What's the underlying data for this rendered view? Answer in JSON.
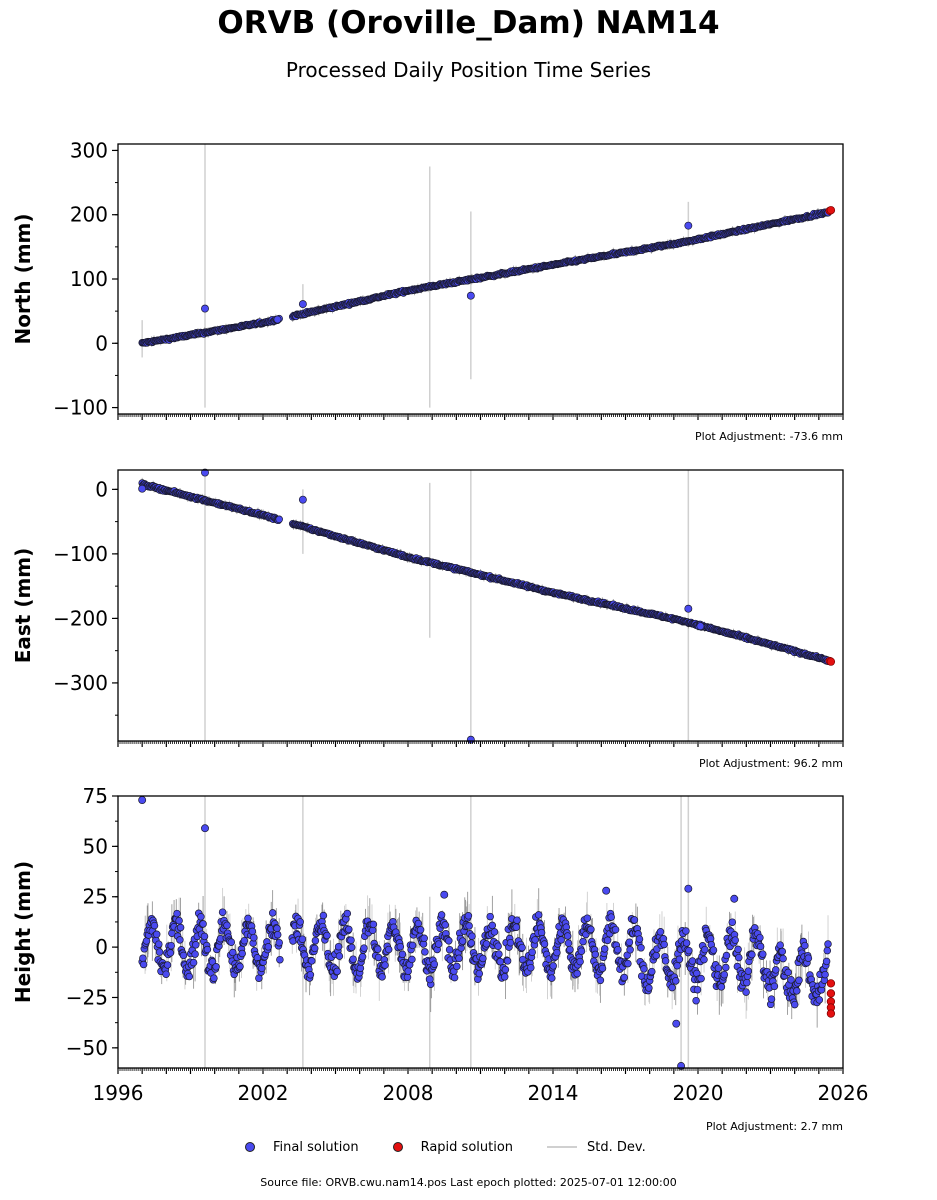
{
  "header": {
    "title": "ORVB (Oroville_Dam) NAM14",
    "subtitle": "Processed Daily Position Time Series"
  },
  "footer": {
    "source": "Source file: ORVB.cwu.nam14.pos  Last epoch plotted: 2025-07-01 12:00:00"
  },
  "legend": {
    "final": "Final solution",
    "rapid": "Rapid solution",
    "stddev": "Std. Dev."
  },
  "colors": {
    "final": "#4a4af0",
    "rapid": "#e31010",
    "stddev": "#d0d0d0",
    "marker_edge": "#1a1a2e"
  },
  "chart_data": [
    {
      "type": "scatter",
      "ylabel": "North (mm)",
      "ylim": [
        -110,
        310
      ],
      "yticks": [
        -100,
        0,
        100,
        200,
        300
      ],
      "xlim": [
        1996,
        2026
      ],
      "xticks": [
        1996,
        2002,
        2008,
        2014,
        2020,
        2026
      ],
      "adjustment": "Plot Adjustment: -73.6 mm",
      "series": [
        {
          "key": "final",
          "trend_points": [
            [
              1997.0,
              0
            ],
            [
              2002.0,
              32
            ],
            [
              2008.0,
              82
            ],
            [
              2014.0,
              122
            ],
            [
              2019.5,
              158
            ],
            [
              2025.4,
              204
            ]
          ]
        },
        {
          "key": "rapid",
          "points": [
            [
              2025.45,
              206
            ],
            [
              2025.5,
              207
            ]
          ]
        }
      ],
      "outliers": [
        [
          1999.6,
          54
        ],
        [
          2003.65,
          61
        ],
        [
          2010.6,
          74
        ],
        [
          2019.6,
          183
        ],
        [
          2002.6,
          37
        ]
      ],
      "error_bars": [
        [
          1999.6,
          -100,
          310
        ],
        [
          2008.9,
          -100,
          275
        ],
        [
          2010.6,
          -56,
          205
        ],
        [
          2003.65,
          38,
          92
        ],
        [
          1997.0,
          -22,
          36
        ],
        [
          2019.6,
          150,
          220
        ]
      ]
    },
    {
      "type": "scatter",
      "ylabel": "East (mm)",
      "ylim": [
        -390,
        30
      ],
      "yticks": [
        -300,
        -200,
        -100,
        0
      ],
      "xlim": [
        1996,
        2026
      ],
      "xticks": [
        1996,
        2002,
        2008,
        2014,
        2020,
        2026
      ],
      "adjustment": "Plot Adjustment: 96.2 mm",
      "series": [
        {
          "key": "final",
          "trend_points": [
            [
              1997.0,
              8
            ],
            [
              2002.0,
              -40
            ],
            [
              2008.0,
              -105
            ],
            [
              2014.0,
              -160
            ],
            [
              2019.5,
              -205
            ],
            [
              2025.4,
              -265
            ]
          ]
        },
        {
          "key": "rapid",
          "points": [
            [
              2025.45,
              -266
            ],
            [
              2025.5,
              -267
            ]
          ]
        }
      ],
      "outliers": [
        [
          1999.6,
          26
        ],
        [
          2003.65,
          -16
        ],
        [
          2010.6,
          -388
        ],
        [
          2019.6,
          -185
        ],
        [
          2020.1,
          -212
        ],
        [
          1997.0,
          1
        ]
      ],
      "error_bars": [
        [
          1999.6,
          -390,
          30
        ],
        [
          2008.9,
          -230,
          10
        ],
        [
          2010.6,
          -390,
          30
        ],
        [
          2003.65,
          -100,
          0
        ],
        [
          2019.6,
          -390,
          30
        ]
      ]
    },
    {
      "type": "scatter",
      "ylabel": "Height (mm)",
      "ylim": [
        -60,
        75
      ],
      "yticks": [
        -50,
        -25,
        0,
        25,
        50,
        75
      ],
      "xlim": [
        1996,
        2026
      ],
      "xticks": [
        1996,
        2002,
        2008,
        2014,
        2020,
        2026
      ],
      "xticklabels": [
        "1996",
        "2002",
        "2008",
        "2014",
        "2020",
        "2026"
      ],
      "adjustment": "Plot Adjustment: 2.7 mm",
      "series": [
        {
          "key": "final",
          "seasonal_amplitude_mm": 15,
          "noise_mm": 6
        },
        {
          "key": "rapid",
          "points": [
            [
              2025.5,
              -18
            ],
            [
              2025.5,
              -23
            ],
            [
              2025.5,
              -27
            ],
            [
              2025.5,
              -30
            ],
            [
              2025.5,
              -33
            ]
          ]
        }
      ],
      "outliers": [
        [
          1997.0,
          73
        ],
        [
          1999.6,
          59
        ],
        [
          2019.6,
          29
        ],
        [
          2019.1,
          -38
        ],
        [
          2019.3,
          -59
        ],
        [
          2009.5,
          26
        ],
        [
          2008.9,
          -16
        ],
        [
          2021.5,
          24
        ],
        [
          2016.2,
          28
        ]
      ],
      "error_bars": [
        [
          1999.6,
          -60,
          75
        ],
        [
          2003.65,
          -60,
          75
        ],
        [
          2010.6,
          -60,
          75
        ],
        [
          2019.6,
          -60,
          75
        ],
        [
          2019.3,
          -60,
          75
        ],
        [
          2008.9,
          -60,
          25
        ]
      ]
    }
  ]
}
